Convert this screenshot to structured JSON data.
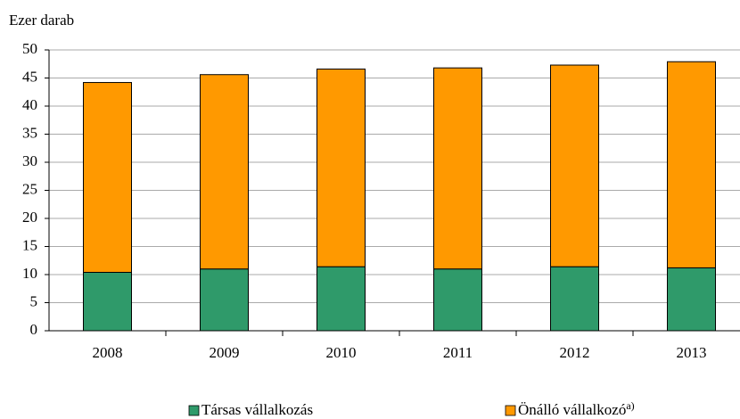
{
  "chart_data": {
    "type": "stacked_bar",
    "y_axis_label": "Ezer darab",
    "categories": [
      "2008",
      "2009",
      "2010",
      "2011",
      "2012",
      "2013"
    ],
    "series": [
      {
        "name": "Társas vállalkozás",
        "color": "#2f9a6a",
        "values": [
          10.4,
          11.0,
          11.4,
          11.0,
          11.4,
          11.2
        ]
      },
      {
        "name": "Önálló vállalkozó",
        "footnote": "a)",
        "color": "#ff9900",
        "values": [
          33.8,
          34.6,
          35.2,
          35.8,
          35.9,
          36.7
        ]
      }
    ],
    "ylim": [
      0,
      50
    ],
    "yticks": [
      0,
      5,
      10,
      15,
      20,
      25,
      30,
      35,
      40,
      45,
      50
    ],
    "grid": true
  }
}
